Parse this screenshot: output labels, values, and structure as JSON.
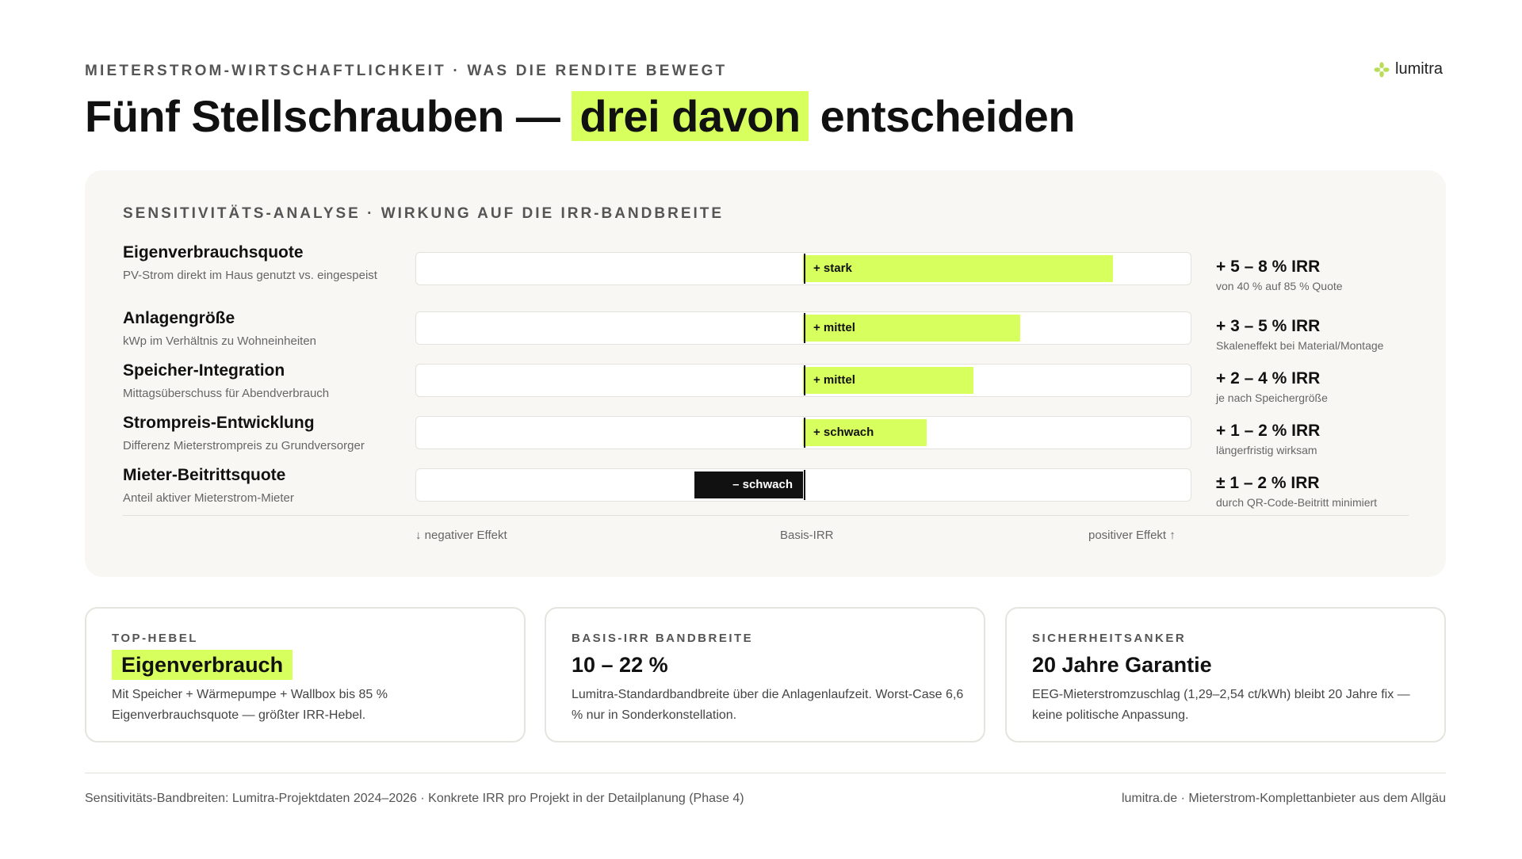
{
  "header": {
    "eyebrow": "MIETERSTROM-WIRTSCHAFTLICHKEIT · WAS DIE RENDITE BEWEGT",
    "title_before": "Fünf Stellschrauben —",
    "title_highlight": "drei davon",
    "title_after": "entscheiden",
    "logo_text": "lumitra",
    "logo_icon": "flower-icon"
  },
  "colors": {
    "accent": "#d7ff5e",
    "negative": "#111111",
    "panel": "#f8f7f4"
  },
  "chart_data": {
    "type": "bar",
    "orientation": "horizontal-diverging",
    "title": "SENSITIVITÄTS-ANALYSE · WIRKUNG AUF DIE IRR-BANDBREITE",
    "axis_labels": {
      "negative": "↓ negativer Effekt",
      "center": "Basis-IRR",
      "positive": "positiver Effekt ↑"
    },
    "xlim": [
      -1,
      1
    ],
    "rows": [
      {
        "name": "Eigenverbrauchsquote",
        "desc": "PV-Strom direkt im Haus genutzt vs. eingespeist",
        "effect": 0.8,
        "label": "+ stark",
        "irr": "+ 5 – 8 % IRR",
        "note": "von 40 % auf 85 % Quote"
      },
      {
        "name": "Anlagengröße",
        "desc": "kWp im Verhältnis zu Wohneinheiten",
        "effect": 0.56,
        "label": "+ mittel",
        "irr": "+ 3 – 5 % IRR",
        "note": "Skaleneffekt bei Material/Montage"
      },
      {
        "name": "Speicher-Integration",
        "desc": "Mittagsüberschuss für Abendverbrauch",
        "effect": 0.44,
        "label": "+ mittel",
        "irr": "+ 2 – 4 % IRR",
        "note": "je nach Speichergröße"
      },
      {
        "name": "Strompreis-Entwicklung",
        "desc": "Differenz Mieterstrompreis zu Grundversorger",
        "effect": 0.32,
        "label": "+ schwach",
        "irr": "+ 1 – 2 % IRR",
        "note": "längerfristig wirksam"
      },
      {
        "name": "Mieter-Beitrittsquote",
        "desc": "Anteil aktiver Mieterstrom-Mieter",
        "effect": -0.28,
        "label": "– schwach",
        "irr": "± 1 – 2 % IRR",
        "note": "durch QR-Code-Beitritt minimiert"
      }
    ]
  },
  "cards": [
    {
      "label": "TOP-HEBEL",
      "value": "Eigenverbrauch",
      "text": "Mit Speicher + Wärmepumpe + Wallbox bis 85 % Eigenverbrauchsquote — größter IRR-Hebel."
    },
    {
      "label": "BASIS-IRR BANDBREITE",
      "value": "10 – 22 %",
      "text": "Lumitra-Standardbandbreite über die Anlagenlaufzeit. Worst-Case 6,6 % nur in Sonderkonstellation."
    },
    {
      "label": "SICHERHEITSANKER",
      "value": "20 Jahre Garantie",
      "text": "EEG-Mieterstromzuschlag (1,29–2,54 ct/kWh) bleibt 20 Jahre fix — keine politische Anpassung."
    }
  ],
  "footer": {
    "left": "Sensitivitäts-Bandbreiten: Lumitra-Projektdaten 2024–2026 · Konkrete IRR pro Projekt in der Detailplanung (Phase 4)",
    "right": "lumitra.de · Mieterstrom-Komplettanbieter aus dem Allgäu"
  }
}
